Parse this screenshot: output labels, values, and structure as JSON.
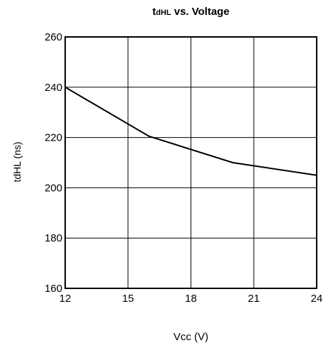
{
  "chart_data": {
    "type": "line",
    "title_main": "t",
    "title_sub": "dHL",
    "title_rest": " vs. Voltage",
    "xlabel": "Vcc (V)",
    "ylabel": "tdHL (ns)",
    "xlim": [
      12,
      24
    ],
    "ylim": [
      160,
      260
    ],
    "xticks": [
      12,
      15,
      18,
      21,
      24
    ],
    "yticks": [
      160,
      180,
      200,
      220,
      240,
      260
    ],
    "grid": true,
    "series": [
      {
        "x": [
          12,
          16,
          20,
          24
        ],
        "y": [
          240,
          220.5,
          210,
          205
        ]
      }
    ]
  }
}
